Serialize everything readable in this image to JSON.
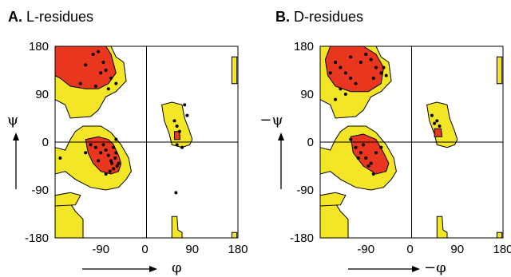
{
  "chart_data": [
    {
      "type": "scatter",
      "panel_letter": "A.",
      "title": "L-residues",
      "xlabel": "φ",
      "ylabel": "ψ",
      "xlim": [
        -180,
        180
      ],
      "ylim": [
        -180,
        180
      ],
      "x_ticks": [
        "-90",
        "0",
        "90",
        "180"
      ],
      "y_ticks": [
        "180",
        "90",
        "0",
        "-90",
        "-180"
      ],
      "region_colors": {
        "core": "#e8371e",
        "allowed": "#f2e626"
      },
      "points": [
        [
          -120,
          145
        ],
        [
          -105,
          165
        ],
        [
          -95,
          170
        ],
        [
          -85,
          150
        ],
        [
          -80,
          135
        ],
        [
          -70,
          120
        ],
        [
          -90,
          130
        ],
        [
          -60,
          110
        ],
        [
          -130,
          110
        ],
        [
          -100,
          105
        ],
        [
          -75,
          100
        ],
        [
          -65,
          -10
        ],
        [
          -60,
          -20
        ],
        [
          -62,
          -30
        ],
        [
          -68,
          -40
        ],
        [
          -70,
          -35
        ],
        [
          -75,
          -25
        ],
        [
          -80,
          -15
        ],
        [
          -85,
          -5
        ],
        [
          -90,
          -20
        ],
        [
          -95,
          -35
        ],
        [
          -58,
          -45
        ],
        [
          -55,
          -40
        ],
        [
          -65,
          -50
        ],
        [
          -72,
          -55
        ],
        [
          -60,
          5
        ],
        [
          -100,
          -10
        ],
        [
          -110,
          -5
        ],
        [
          -120,
          -20
        ],
        [
          -170,
          -30
        ],
        [
          -80,
          -60
        ],
        [
          55,
          40
        ],
        [
          60,
          30
        ],
        [
          65,
          20
        ],
        [
          70,
          -10
        ],
        [
          60,
          -5
        ],
        [
          75,
          70
        ],
        [
          80,
          50
        ],
        [
          58,
          -95
        ]
      ]
    },
    {
      "type": "scatter",
      "panel_letter": "B.",
      "title": "D-residues",
      "xlabel": "−φ",
      "ylabel": "−ψ",
      "xlim": [
        -180,
        180
      ],
      "ylim": [
        -180,
        180
      ],
      "x_ticks": [
        "-90",
        "0",
        "90",
        "180"
      ],
      "y_ticks": [
        "180",
        "90",
        "0",
        "-90",
        "-180"
      ],
      "region_colors": {
        "core": "#e8371e",
        "allowed": "#f2e626"
      },
      "points": [
        [
          -150,
          150
        ],
        [
          -140,
          140
        ],
        [
          -130,
          130
        ],
        [
          -120,
          120
        ],
        [
          -110,
          110
        ],
        [
          -100,
          150
        ],
        [
          -90,
          165
        ],
        [
          -80,
          155
        ],
        [
          -70,
          140
        ],
        [
          -60,
          130
        ],
        [
          -50,
          125
        ],
        [
          -55,
          140
        ],
        [
          -75,
          120
        ],
        [
          -140,
          100
        ],
        [
          -150,
          80
        ],
        [
          -130,
          90
        ],
        [
          -120,
          160
        ],
        [
          -160,
          130
        ],
        [
          -110,
          -10
        ],
        [
          -100,
          -20
        ],
        [
          -90,
          -30
        ],
        [
          -80,
          -40
        ],
        [
          -70,
          -20
        ],
        [
          -60,
          -10
        ],
        [
          -120,
          5
        ],
        [
          -95,
          -5
        ],
        [
          -85,
          -45
        ],
        [
          -75,
          -60
        ],
        [
          -105,
          -30
        ],
        [
          40,
          50
        ],
        [
          50,
          40
        ],
        [
          55,
          30
        ],
        [
          45,
          35
        ]
      ]
    }
  ]
}
